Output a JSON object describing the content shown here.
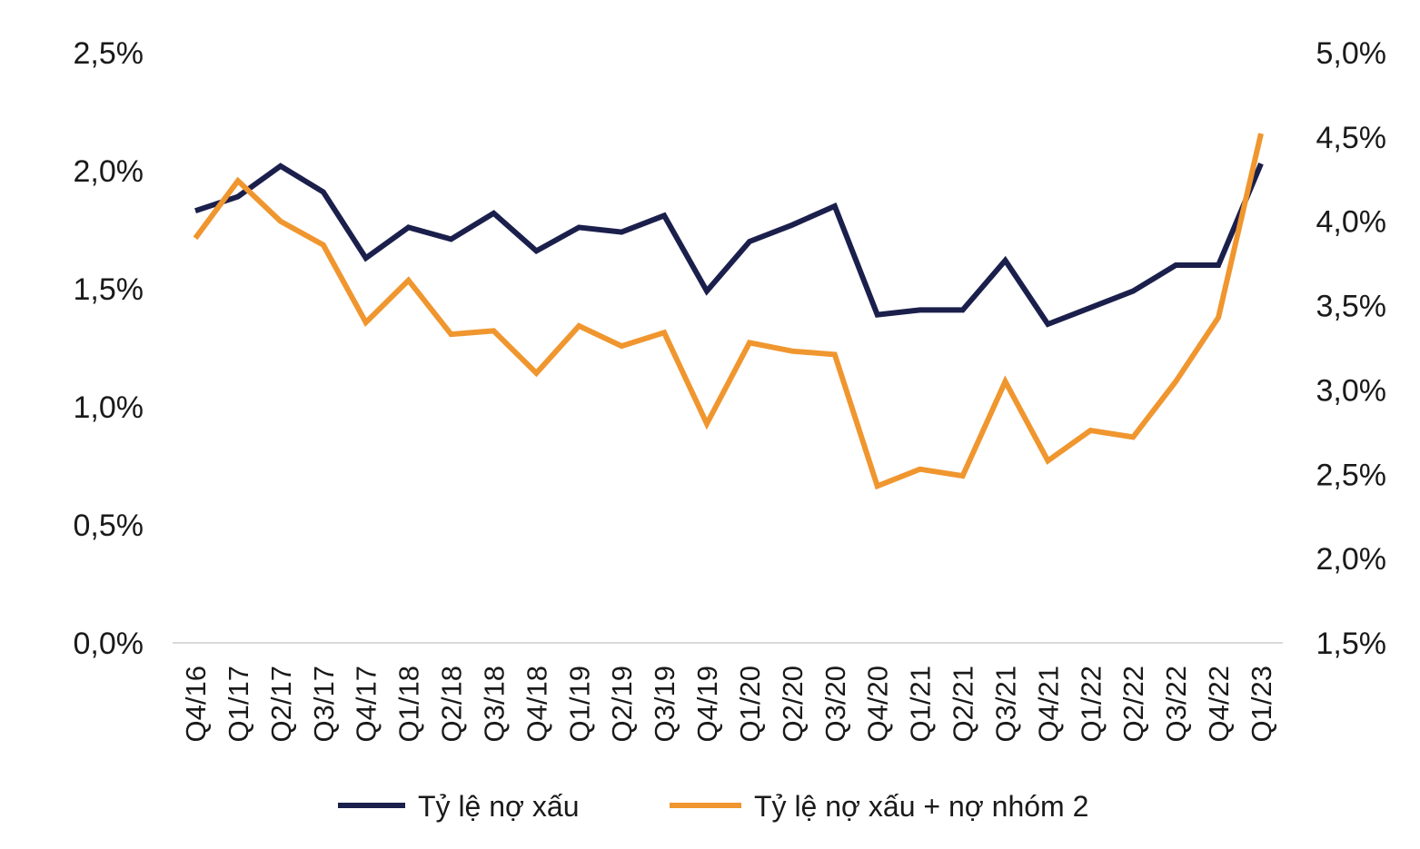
{
  "chart_data": {
    "type": "line",
    "title": "",
    "xlabel": "",
    "categories": [
      "Q4/16",
      "Q1/17",
      "Q2/17",
      "Q3/17",
      "Q4/17",
      "Q1/18",
      "Q2/18",
      "Q3/18",
      "Q4/18",
      "Q1/19",
      "Q2/19",
      "Q3/19",
      "Q4/19",
      "Q1/20",
      "Q2/20",
      "Q3/20",
      "Q4/20",
      "Q1/21",
      "Q2/21",
      "Q3/21",
      "Q4/21",
      "Q1/22",
      "Q2/22",
      "Q3/22",
      "Q4/22",
      "Q1/23"
    ],
    "y_left": {
      "label": "",
      "range": [
        0.0,
        2.5
      ],
      "ticks": [
        "0,0%",
        "0,5%",
        "1,0%",
        "1,5%",
        "2,0%",
        "2,5%"
      ],
      "tick_values": [
        0.0,
        0.5,
        1.0,
        1.5,
        2.0,
        2.5
      ]
    },
    "y_right": {
      "label": "",
      "range": [
        1.5,
        5.0
      ],
      "ticks": [
        "1,5%",
        "2,0%",
        "2,5%",
        "3,0%",
        "3,5%",
        "4,0%",
        "4,5%",
        "5,0%"
      ],
      "tick_values": [
        1.5,
        2.0,
        2.5,
        3.0,
        3.5,
        4.0,
        4.5,
        5.0
      ]
    },
    "grid": false,
    "legend_position": "bottom",
    "series": [
      {
        "name": "Tỷ lệ nợ xấu",
        "axis": "left",
        "color": "#1b1f4b",
        "values": [
          1.83,
          1.89,
          2.02,
          1.91,
          1.63,
          1.76,
          1.71,
          1.82,
          1.66,
          1.76,
          1.74,
          1.81,
          1.49,
          1.7,
          1.77,
          1.85,
          1.39,
          1.41,
          1.41,
          1.62,
          1.35,
          1.42,
          1.49,
          1.6,
          1.6,
          2.03
        ]
      },
      {
        "name": "Tỷ lệ nợ xấu + nợ nhóm 2",
        "axis": "right",
        "color": "#f0962f",
        "values": [
          3.9,
          4.24,
          4.0,
          3.86,
          3.4,
          3.65,
          3.33,
          3.35,
          3.1,
          3.38,
          3.26,
          3.34,
          2.8,
          3.28,
          3.23,
          3.21,
          2.43,
          2.53,
          2.49,
          3.05,
          2.58,
          2.76,
          2.72,
          3.05,
          3.43,
          4.52
        ]
      }
    ]
  }
}
